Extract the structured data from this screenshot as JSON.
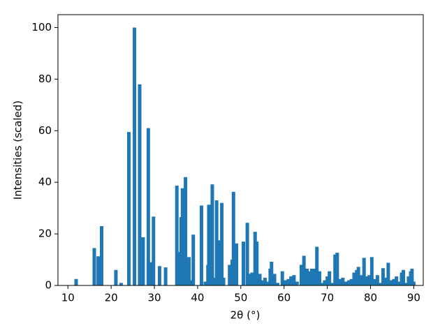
{
  "chart_data": {
    "type": "bar",
    "xlabel": "2θ (°)",
    "ylabel": "Intensities (scaled)",
    "color": "#1f77b4",
    "x": [
      11.9,
      16.1,
      17.0,
      17.8,
      21.1,
      22.3,
      24.1,
      25.4,
      26.6,
      27.4,
      28.6,
      29.2,
      29.8,
      31.2,
      32.6,
      35.2,
      35.7,
      36.2,
      36.5,
      37.2,
      38.0,
      38.4,
      39.0,
      40.9,
      41.8,
      42.4,
      42.6,
      43.4,
      43.7,
      44.4,
      45.1,
      45.6,
      46.0,
      47.4,
      48.0,
      48.3,
      49.0,
      50.6,
      51.5,
      52.2,
      52.6,
      53.3,
      53.7,
      54.4,
      55.0,
      55.6,
      56.2,
      56.8,
      57.1,
      57.8,
      58.5,
      59.6,
      60.3,
      61.0,
      61.6,
      62.3,
      63.0,
      64.0,
      64.6,
      65.3,
      65.8,
      66.4,
      67.1,
      67.6,
      68.2,
      68.8,
      69.4,
      70.0,
      70.5,
      71.2,
      71.8,
      72.3,
      73.0,
      73.6,
      74.3,
      75.0,
      75.6,
      76.2,
      76.8,
      77.2,
      77.9,
      78.5,
      79.1,
      79.7,
      80.3,
      80.9,
      81.6,
      82.2,
      82.9,
      83.5,
      84.1,
      84.8,
      85.4,
      86.0,
      86.6,
      87.2,
      87.6,
      88.2,
      88.8,
      89.3,
      89.6,
      90.0
    ],
    "values": [
      2.5,
      14.5,
      11.3,
      23,
      6,
      1,
      59.5,
      100,
      78,
      18.7,
      61,
      9,
      26.7,
      7.5,
      7,
      38.7,
      13,
      26.5,
      37.7,
      42,
      11,
      2,
      19.7,
      31,
      1.5,
      8,
      31.3,
      39.2,
      3,
      33,
      17.5,
      32,
      3,
      8,
      10,
      36.3,
      16.3,
      17,
      24.3,
      4.5,
      5,
      20.8,
      17,
      4.5,
      2,
      3,
      1.5,
      6.5,
      9.2,
      4.5,
      1,
      5.5,
      2,
      2.5,
      3.5,
      4,
      1.5,
      8,
      11.5,
      6.5,
      5.5,
      6.5,
      6.5,
      15,
      5.5,
      1,
      2,
      3.5,
      5.5,
      1,
      12,
      12.7,
      2.5,
      3,
      1.5,
      2,
      2.5,
      5,
      6,
      7.2,
      4,
      10.7,
      3.5,
      4,
      11,
      2.5,
      4,
      1,
      6.7,
      3,
      8.8,
      2,
      2.5,
      3.5,
      1.5,
      5,
      6,
      1,
      3.5,
      5.5,
      6.5,
      1.5
    ],
    "xlim": [
      7.7,
      92.2
    ],
    "ylim": [
      0,
      105
    ],
    "xticks": [
      10,
      20,
      30,
      40,
      50,
      60,
      70,
      80,
      90
    ],
    "yticks": [
      0,
      20,
      40,
      60,
      80,
      100
    ]
  }
}
